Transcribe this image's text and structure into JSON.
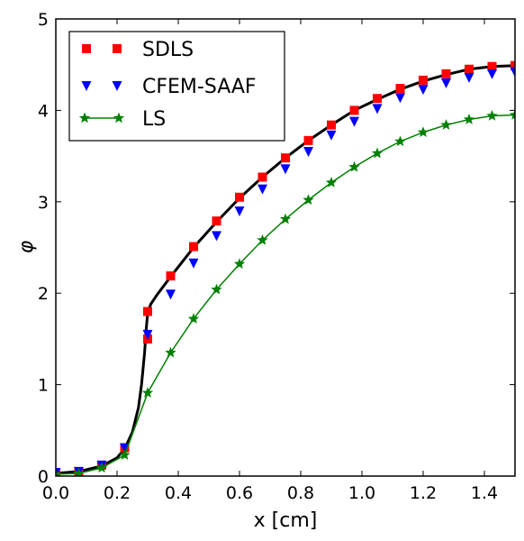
{
  "chart_data": {
    "type": "line",
    "xlabel": "x [cm]",
    "ylabel": "φ",
    "xlim": [
      0.0,
      1.5
    ],
    "ylim": [
      0,
      5
    ],
    "xticks": [
      "0.0",
      "0.2",
      "0.4",
      "0.6",
      "0.8",
      "1.0",
      "1.2",
      "1.4"
    ],
    "xtick_values": [
      0.0,
      0.2,
      0.4,
      0.6,
      0.8,
      1.0,
      1.2,
      1.4
    ],
    "yticks": [
      "0",
      "1",
      "2",
      "3",
      "4",
      "5"
    ],
    "ytick_values": [
      0,
      1,
      2,
      3,
      4,
      5
    ],
    "grid": false,
    "legend_position": "top-left",
    "reference_line": {
      "color": "#000000",
      "x": [
        0.0,
        0.075,
        0.15,
        0.2,
        0.225,
        0.25,
        0.27,
        0.28,
        0.29,
        0.295,
        0.3,
        0.31,
        0.33,
        0.375,
        0.45,
        0.525,
        0.6,
        0.675,
        0.75,
        0.825,
        0.9,
        0.975,
        1.05,
        1.125,
        1.2,
        1.275,
        1.35,
        1.425,
        1.5
      ],
      "y": [
        0.03,
        0.05,
        0.11,
        0.2,
        0.3,
        0.48,
        0.75,
        1.0,
        1.35,
        1.6,
        1.78,
        1.88,
        1.98,
        2.18,
        2.5,
        2.78,
        3.04,
        3.27,
        3.48,
        3.67,
        3.84,
        4.0,
        4.12,
        4.23,
        4.32,
        4.39,
        4.45,
        4.48,
        4.49
      ]
    },
    "series": [
      {
        "name": "SDLS",
        "marker": "square",
        "line": false,
        "color": "#ff0000",
        "x": [
          0.0,
          0.075,
          0.15,
          0.225,
          0.3,
          0.3,
          0.375,
          0.45,
          0.525,
          0.6,
          0.675,
          0.75,
          0.825,
          0.9,
          0.975,
          1.05,
          1.125,
          1.2,
          1.275,
          1.35,
          1.425,
          1.5
        ],
        "y": [
          0.04,
          0.05,
          0.12,
          0.31,
          1.5,
          1.8,
          2.19,
          2.51,
          2.79,
          3.05,
          3.27,
          3.48,
          3.67,
          3.84,
          4.0,
          4.13,
          4.24,
          4.33,
          4.4,
          4.45,
          4.48,
          4.49
        ]
      },
      {
        "name": "CFEM-SAAF",
        "marker": "triangle-down",
        "line": false,
        "color": "#0000ff",
        "x": [
          0.0,
          0.075,
          0.15,
          0.225,
          0.3,
          0.375,
          0.45,
          0.525,
          0.6,
          0.675,
          0.75,
          0.825,
          0.9,
          0.975,
          1.05,
          1.125,
          1.2,
          1.275,
          1.35,
          1.425,
          1.5
        ],
        "y": [
          0.04,
          0.05,
          0.12,
          0.31,
          1.55,
          1.99,
          2.33,
          2.63,
          2.9,
          3.14,
          3.36,
          3.55,
          3.73,
          3.88,
          4.02,
          4.14,
          4.23,
          4.3,
          4.36,
          4.4,
          4.42
        ]
      },
      {
        "name": "LS",
        "marker": "star",
        "line": true,
        "color": "#008000",
        "x": [
          0.0,
          0.075,
          0.15,
          0.225,
          0.3,
          0.375,
          0.45,
          0.525,
          0.6,
          0.675,
          0.75,
          0.825,
          0.9,
          0.975,
          1.05,
          1.125,
          1.2,
          1.275,
          1.35,
          1.425,
          1.5
        ],
        "y": [
          0.02,
          0.03,
          0.09,
          0.23,
          0.91,
          1.35,
          1.72,
          2.04,
          2.32,
          2.58,
          2.81,
          3.02,
          3.21,
          3.38,
          3.53,
          3.66,
          3.76,
          3.84,
          3.9,
          3.94,
          3.95
        ]
      }
    ]
  }
}
